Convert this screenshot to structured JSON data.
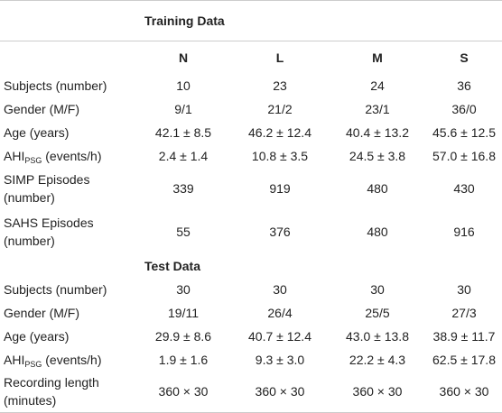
{
  "columns": [
    "N",
    "L",
    "M",
    "S"
  ],
  "sections": [
    {
      "title": "Training Data",
      "rows": [
        {
          "label": "Subjects (number)",
          "values": [
            "10",
            "23",
            "24",
            "36"
          ]
        },
        {
          "label": "Gender (M/F)",
          "values": [
            "9/1",
            "21/2",
            "23/1",
            "36/0"
          ]
        },
        {
          "label": "Age (years)",
          "values": [
            "42.1 ± 8.5",
            "46.2 ± 12.4",
            "40.4 ± 13.2",
            "45.6 ± 12.5"
          ]
        },
        {
          "label": {
            "main": "AHI",
            "sub": "PSG",
            "rest": " (events/h)"
          },
          "values": [
            "2.4 ± 1.4",
            "10.8 ± 3.5",
            "24.5 ± 3.8",
            "57.0 ± 16.8"
          ]
        },
        {
          "label": "SIMP Episodes (number)",
          "values": [
            "339",
            "919",
            "480",
            "430"
          ]
        },
        {
          "label": "SAHS Episodes (number)",
          "values": [
            "55",
            "376",
            "480",
            "916"
          ]
        }
      ]
    },
    {
      "title": "Test Data",
      "rows": [
        {
          "label": "Subjects (number)",
          "values": [
            "30",
            "30",
            "30",
            "30"
          ]
        },
        {
          "label": "Gender (M/F)",
          "values": [
            "19/11",
            "26/4",
            "25/5",
            "27/3"
          ]
        },
        {
          "label": "Age (years)",
          "values": [
            "29.9 ± 8.6",
            "40.7 ± 12.4",
            "43.0 ± 13.8",
            "38.9 ± 11.7"
          ]
        },
        {
          "label": {
            "main": "AHI",
            "sub": "PSG",
            "rest": " (events/h)"
          },
          "values": [
            "1.9 ± 1.6",
            "9.3 ± 3.0",
            "22.2 ± 4.3",
            "62.5 ± 17.8"
          ]
        },
        {
          "label": "Recording length (minutes)",
          "values": [
            "360 × 30",
            "360 × 30",
            "360 × 30",
            "360 × 30"
          ]
        }
      ]
    }
  ]
}
